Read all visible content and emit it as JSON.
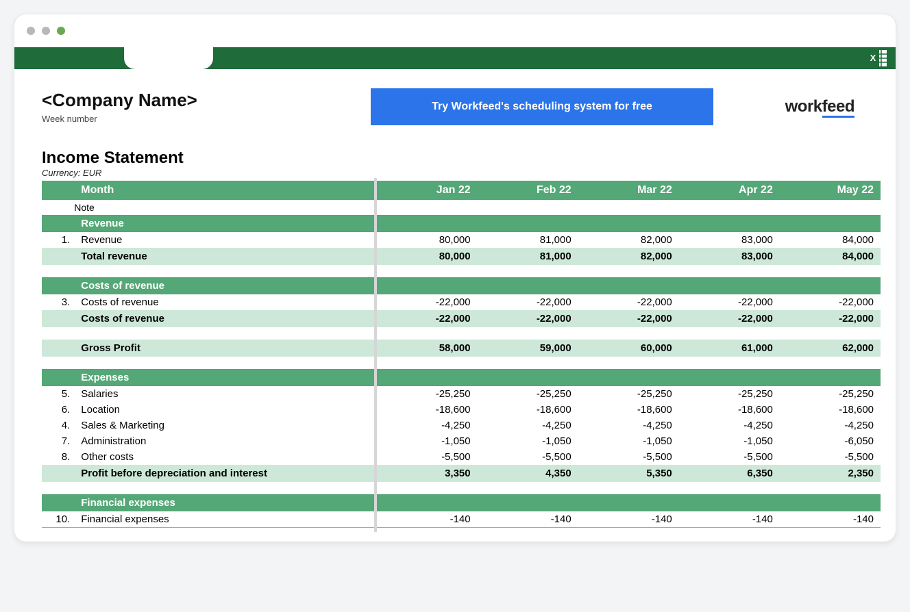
{
  "window": {
    "dot_colors": [
      "#b8b8b8",
      "#b8b8b8",
      "#6aa84f"
    ]
  },
  "topbar": {
    "bg_color": "#1f6b3a",
    "excel_icon_color": "#1f6b3a"
  },
  "header": {
    "company_name": "<Company Name>",
    "week_label": "Week number",
    "cta_label": "Try Workfeed's scheduling system for free",
    "cta_bg": "#2b74ea",
    "logo_text_a": "work",
    "logo_text_b": "feed"
  },
  "statement": {
    "title": "Income Statement",
    "currency_label": "Currency: EUR",
    "header_bg": "#54a776",
    "subtotal_bg": "#cde8d8",
    "month_label": "Month",
    "note_label": "Note",
    "months": [
      "Jan 22",
      "Feb 22",
      "Mar 22",
      "Apr 22",
      "May 22"
    ],
    "sections": {
      "revenue": {
        "title": "Revenue",
        "rows": [
          {
            "num": "1.",
            "label": "Revenue",
            "values": [
              "80,000",
              "81,000",
              "82,000",
              "83,000",
              "84,000"
            ]
          }
        ],
        "total": {
          "label": "Total revenue",
          "values": [
            "80,000",
            "81,000",
            "82,000",
            "83,000",
            "84,000"
          ]
        }
      },
      "costs": {
        "title": "Costs of revenue",
        "rows": [
          {
            "num": "3.",
            "label": "Costs of revenue",
            "values": [
              "-22,000",
              "-22,000",
              "-22,000",
              "-22,000",
              "-22,000"
            ]
          }
        ],
        "total": {
          "label": "Costs of revenue",
          "values": [
            "-22,000",
            "-22,000",
            "-22,000",
            "-22,000",
            "-22,000"
          ]
        }
      },
      "gross": {
        "label": "Gross Profit",
        "values": [
          "58,000",
          "59,000",
          "60,000",
          "61,000",
          "62,000"
        ]
      },
      "expenses": {
        "title": "Expenses",
        "rows": [
          {
            "num": "5.",
            "label": "Salaries",
            "values": [
              "-25,250",
              "-25,250",
              "-25,250",
              "-25,250",
              "-25,250"
            ]
          },
          {
            "num": "6.",
            "label": "Location",
            "values": [
              "-18,600",
              "-18,600",
              "-18,600",
              "-18,600",
              "-18,600"
            ]
          },
          {
            "num": "4.",
            "label": "Sales & Marketing",
            "values": [
              "-4,250",
              "-4,250",
              "-4,250",
              "-4,250",
              "-4,250"
            ]
          },
          {
            "num": "7.",
            "label": "Administration",
            "values": [
              "-1,050",
              "-1,050",
              "-1,050",
              "-1,050",
              "-6,050"
            ]
          },
          {
            "num": "8.",
            "label": "Other costs",
            "values": [
              "-5,500",
              "-5,500",
              "-5,500",
              "-5,500",
              "-5,500"
            ]
          }
        ],
        "total": {
          "label": "Profit before depreciation and interest",
          "values": [
            "3,350",
            "4,350",
            "5,350",
            "6,350",
            "2,350"
          ]
        }
      },
      "financial": {
        "title": "Financial expenses",
        "rows": [
          {
            "num": "10.",
            "label": "Financial expenses",
            "values": [
              "-140",
              "-140",
              "-140",
              "-140",
              "-140"
            ]
          }
        ]
      }
    }
  }
}
